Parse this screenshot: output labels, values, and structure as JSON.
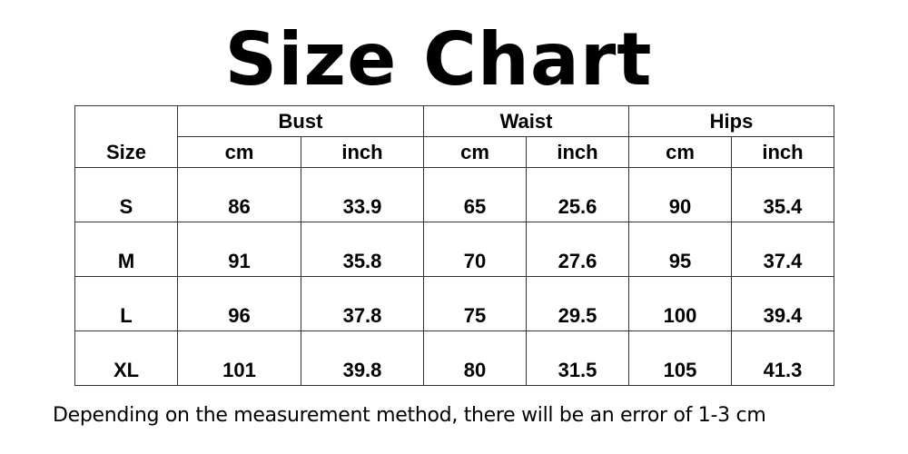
{
  "title": "Size Chart",
  "table": {
    "size_header": "Size",
    "groups": [
      "Bust",
      "Waist",
      "Hips"
    ],
    "units": [
      "cm",
      "inch",
      "cm",
      "inch",
      "cm",
      "inch"
    ],
    "rows": [
      {
        "size": "S",
        "values": [
          "86",
          "33.9",
          "65",
          "25.6",
          "90",
          "35.4"
        ]
      },
      {
        "size": "M",
        "values": [
          "91",
          "35.8",
          "70",
          "27.6",
          "95",
          "37.4"
        ]
      },
      {
        "size": "L",
        "values": [
          "96",
          "37.8",
          "75",
          "29.5",
          "100",
          "39.4"
        ]
      },
      {
        "size": "XL",
        "values": [
          "101",
          "39.8",
          "80",
          "31.5",
          "105",
          "41.3"
        ]
      }
    ]
  },
  "note": "Depending on the measurement method, there will be an error of 1-3 cm"
}
